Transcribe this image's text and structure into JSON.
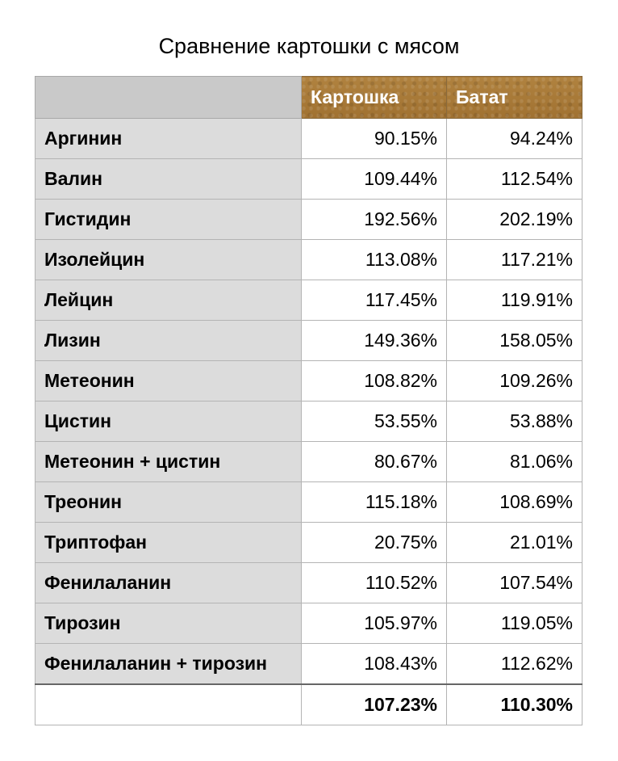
{
  "chart_data": {
    "type": "table",
    "title": "Сравнение картошки с мясом",
    "columns": [
      "",
      "Картошка",
      "Батат"
    ],
    "rows": [
      {
        "label": "Аргинин",
        "values": [
          "90.15%",
          "94.24%"
        ]
      },
      {
        "label": "Валин",
        "values": [
          "109.44%",
          "112.54%"
        ]
      },
      {
        "label": "Гистидин",
        "values": [
          "192.56%",
          "202.19%"
        ]
      },
      {
        "label": "Изолейцин",
        "values": [
          "113.08%",
          "117.21%"
        ]
      },
      {
        "label": "Лейцин",
        "values": [
          "117.45%",
          "119.91%"
        ]
      },
      {
        "label": "Лизин",
        "values": [
          "149.36%",
          "158.05%"
        ]
      },
      {
        "label": "Метеонин",
        "values": [
          "108.82%",
          "109.26%"
        ]
      },
      {
        "label": "Цистин",
        "values": [
          "53.55%",
          "53.88%"
        ]
      },
      {
        "label": "Метеонин + цистин",
        "values": [
          "80.67%",
          "81.06%"
        ]
      },
      {
        "label": "Треонин",
        "values": [
          "115.18%",
          "108.69%"
        ]
      },
      {
        "label": "Триптофан",
        "values": [
          "20.75%",
          "21.01%"
        ]
      },
      {
        "label": "Фенилаланин",
        "values": [
          "110.52%",
          "107.54%"
        ]
      },
      {
        "label": "Тирозин",
        "values": [
          "105.97%",
          "119.05%"
        ]
      },
      {
        "label": "Фенилаланин + тирозин",
        "values": [
          "108.43%",
          "112.62%"
        ]
      }
    ],
    "footer": {
      "label": "",
      "values": [
        "107.23%",
        "110.30%"
      ]
    },
    "colors": {
      "header_bg": "#a8793a",
      "header_text": "#ffffff",
      "label_column_bg": "#dcdcdc",
      "corner_bg": "#c9c9c9"
    }
  }
}
